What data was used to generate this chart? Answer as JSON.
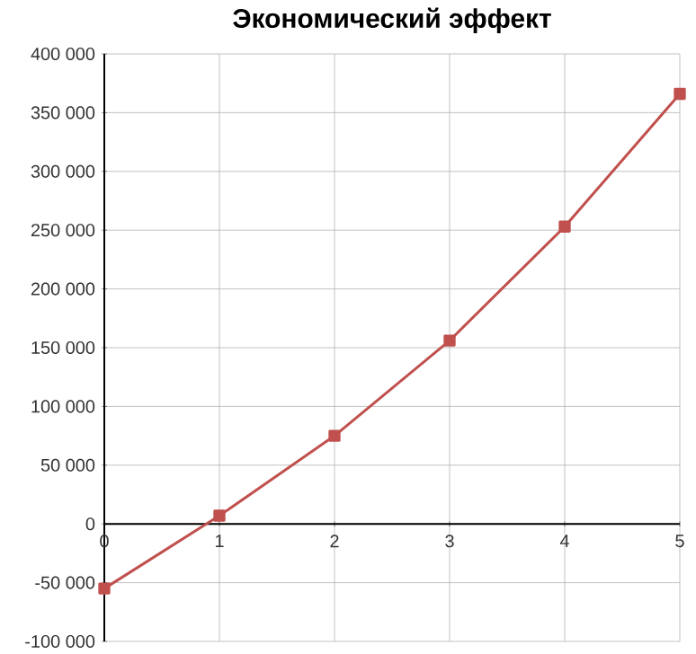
{
  "chart_data": {
    "type": "line",
    "title": "Экономический эффект",
    "x": [
      0,
      1,
      2,
      3,
      4,
      5
    ],
    "series": [
      {
        "color": "#c0504d",
        "values": [
          -55000,
          7000,
          75000,
          156000,
          253000,
          366000
        ]
      }
    ],
    "xlim": [
      0,
      5
    ],
    "xticks": [
      0,
      1,
      2,
      3,
      4,
      5
    ],
    "ylim": [
      -100000,
      400000
    ],
    "yticks": [
      {
        "value": -100000,
        "label": "-100 000"
      },
      {
        "value": -50000,
        "label": "-50 000"
      },
      0,
      {
        "value": 50000,
        "label": "50 000"
      },
      {
        "value": 100000,
        "label": "100 000"
      },
      {
        "value": 150000,
        "label": "150 000"
      },
      {
        "value": 200000,
        "label": "200 000"
      },
      {
        "value": 250000,
        "label": "250 000"
      },
      {
        "value": 300000,
        "label": "300 000"
      },
      {
        "value": 350000,
        "label": "350 000"
      },
      {
        "value": 400000,
        "label": "400 000"
      }
    ],
    "grid": true,
    "marker": "square",
    "line_style": "solid"
  }
}
